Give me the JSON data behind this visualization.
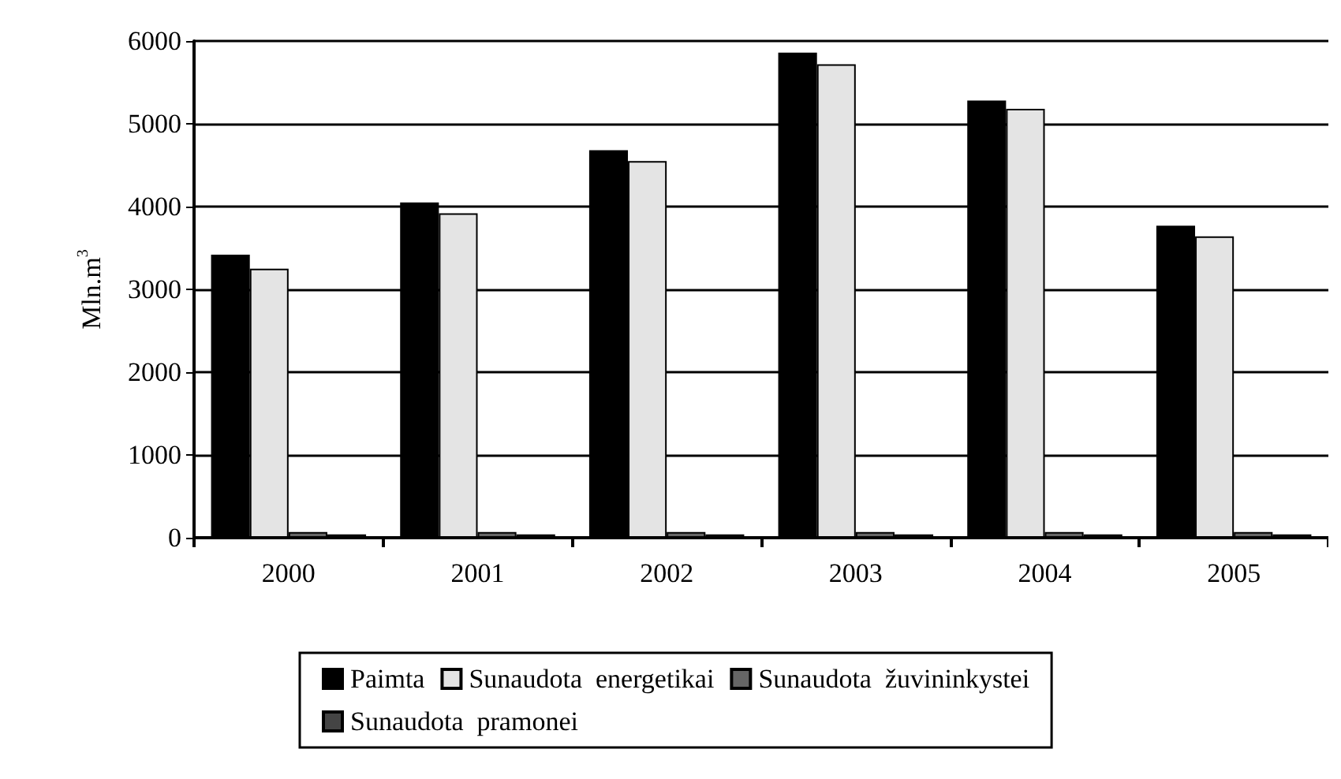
{
  "chart_data": {
    "type": "bar",
    "ylabel": "Mln.m$^{3}$",
    "categories": [
      "2000",
      "2001",
      "2002",
      "2003",
      "2004",
      "2005"
    ],
    "series": [
      {
        "name": "Paimta",
        "color": "#000000",
        "values": [
          3420,
          4050,
          4680,
          5860,
          5280,
          3770
        ]
      },
      {
        "name": "Sunaudota  energetikai",
        "color": "#e4e4e4",
        "values": [
          3250,
          3920,
          4550,
          5720,
          5180,
          3640
        ]
      },
      {
        "name": "Sunaudota  žuvininkystei",
        "color": "#666666",
        "values": [
          70,
          70,
          70,
          70,
          70,
          70
        ]
      },
      {
        "name": "Sunaudota  pramonei",
        "color": "#444444",
        "values": [
          40,
          40,
          40,
          40,
          40,
          40
        ]
      }
    ],
    "ylim": [
      0,
      6000
    ],
    "yticks": [
      0,
      1000,
      2000,
      3000,
      4000,
      5000,
      6000
    ],
    "grid": "y",
    "legend": "bottom"
  }
}
